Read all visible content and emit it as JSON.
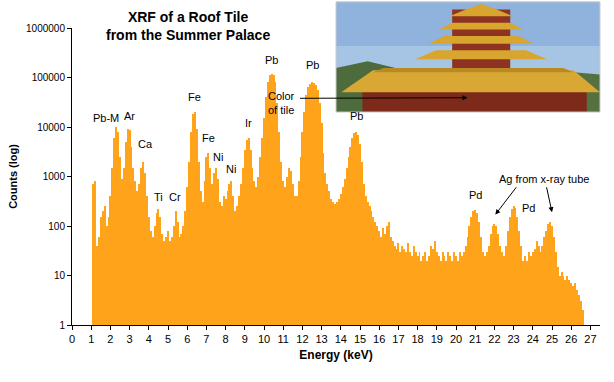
{
  "chart_data": {
    "type": "bar",
    "title": [
      "XRF of a Roof Tile",
      "from the Summer Palace"
    ],
    "x_label": "Energy (keV)",
    "y_label": "Counts (log)",
    "color": "#ffa31a",
    "log": "y",
    "grid": false,
    "xlim": [
      0,
      27.5
    ],
    "ylim": [
      1,
      1000000
    ],
    "xticks": [
      0,
      1,
      2,
      3,
      4,
      5,
      6,
      7,
      8,
      9,
      10,
      11,
      12,
      13,
      14,
      15,
      16,
      17,
      18,
      19,
      20,
      21,
      22,
      23,
      24,
      25,
      26,
      27
    ],
    "yticks": [
      1,
      10,
      100,
      1000,
      10000,
      100000,
      1000000
    ],
    "x": [
      1.1,
      1.2,
      1.3,
      1.4,
      1.5,
      1.6,
      1.7,
      1.8,
      1.9,
      2.0,
      2.1,
      2.2,
      2.3,
      2.4,
      2.5,
      2.6,
      2.7,
      2.8,
      2.9,
      3.0,
      3.1,
      3.2,
      3.3,
      3.4,
      3.5,
      3.6,
      3.7,
      3.8,
      3.9,
      4.0,
      4.1,
      4.2,
      4.3,
      4.4,
      4.5,
      4.6,
      4.7,
      4.8,
      4.9,
      5.0,
      5.1,
      5.2,
      5.3,
      5.4,
      5.5,
      5.6,
      5.7,
      5.8,
      5.9,
      6.0,
      6.1,
      6.2,
      6.3,
      6.4,
      6.5,
      6.6,
      6.7,
      6.8,
      6.9,
      7.0,
      7.1,
      7.2,
      7.3,
      7.4,
      7.5,
      7.6,
      7.7,
      7.8,
      7.9,
      8.0,
      8.1,
      8.2,
      8.3,
      8.4,
      8.5,
      8.6,
      8.7,
      8.8,
      8.9,
      9.0,
      9.1,
      9.2,
      9.3,
      9.4,
      9.5,
      9.6,
      9.7,
      9.8,
      9.9,
      10.0,
      10.1,
      10.2,
      10.3,
      10.4,
      10.5,
      10.6,
      10.7,
      10.8,
      10.9,
      11.0,
      11.1,
      11.2,
      11.3,
      11.4,
      11.5,
      11.6,
      11.7,
      11.8,
      11.9,
      12.0,
      12.1,
      12.2,
      12.3,
      12.4,
      12.5,
      12.6,
      12.7,
      12.8,
      12.9,
      13.0,
      13.1,
      13.2,
      13.3,
      13.4,
      13.5,
      13.6,
      13.7,
      13.8,
      13.9,
      14.0,
      14.1,
      14.2,
      14.3,
      14.4,
      14.5,
      14.6,
      14.7,
      14.8,
      14.9,
      15.0,
      15.1,
      15.2,
      15.3,
      15.4,
      15.5,
      15.6,
      15.7,
      15.8,
      15.9,
      16.0,
      16.1,
      16.2,
      16.3,
      16.4,
      16.5,
      16.6,
      16.7,
      16.8,
      16.9,
      17.0,
      17.1,
      17.2,
      17.3,
      17.4,
      17.5,
      17.6,
      17.7,
      17.8,
      17.9,
      18.0,
      18.1,
      18.2,
      18.3,
      18.4,
      18.5,
      18.6,
      18.7,
      18.8,
      18.9,
      19.0,
      19.1,
      19.2,
      19.3,
      19.4,
      19.5,
      19.6,
      19.7,
      19.8,
      19.9,
      20.0,
      20.1,
      20.2,
      20.3,
      20.4,
      20.5,
      20.6,
      20.7,
      20.8,
      20.9,
      21.0,
      21.1,
      21.2,
      21.3,
      21.4,
      21.5,
      21.6,
      21.7,
      21.8,
      21.9,
      22.0,
      22.1,
      22.2,
      22.3,
      22.4,
      22.5,
      22.6,
      22.7,
      22.8,
      22.9,
      23.0,
      23.1,
      23.2,
      23.3,
      23.4,
      23.5,
      23.6,
      23.7,
      23.8,
      23.9,
      24.0,
      24.1,
      24.2,
      24.3,
      24.4,
      24.5,
      24.6,
      24.7,
      24.8,
      24.9,
      25.0,
      25.1,
      25.2,
      25.3,
      25.4,
      25.5,
      25.6,
      25.7,
      25.8,
      25.9,
      26.0,
      26.1,
      26.2,
      26.3,
      26.4,
      26.5,
      26.6
    ],
    "values": [
      700,
      800,
      40,
      60,
      150,
      200,
      250,
      100,
      150,
      400,
      1500,
      6000,
      10000,
      8000,
      2500,
      900,
      1500,
      5000,
      9000,
      8500,
      4000,
      1500,
      800,
      500,
      700,
      1500,
      2000,
      1200,
      400,
      150,
      80,
      60,
      100,
      180,
      220,
      150,
      70,
      50,
      60,
      80,
      50,
      60,
      100,
      200,
      120,
      60,
      70,
      100,
      200,
      600,
      2000,
      8000,
      18000,
      20000,
      9000,
      2000,
      500,
      300,
      800,
      2500,
      3000,
      1500,
      700,
      1200,
      1500,
      900,
      300,
      250,
      400,
      350,
      500,
      700,
      800,
      400,
      200,
      250,
      400,
      700,
      1500,
      3500,
      5500,
      6000,
      3500,
      1500,
      800,
      600,
      1000,
      2500,
      6000,
      15000,
      40000,
      80000,
      110000,
      120000,
      115000,
      80000,
      30000,
      8000,
      2000,
      800,
      600,
      1000,
      1500,
      1300,
      700,
      400,
      400,
      800,
      2500,
      8000,
      20000,
      45000,
      65000,
      75000,
      80000,
      78000,
      70000,
      55000,
      30000,
      12000,
      3000,
      1200,
      700,
      500,
      350,
      300,
      280,
      300,
      350,
      450,
      600,
      900,
      1500,
      2500,
      4000,
      6000,
      7500,
      8000,
      7000,
      4500,
      2000,
      700,
      400,
      300,
      250,
      200,
      150,
      120,
      100,
      80,
      60,
      90,
      70,
      100,
      120,
      60,
      50,
      40,
      35,
      45,
      30,
      40,
      35,
      30,
      45,
      30,
      25,
      40,
      30,
      25,
      30,
      20,
      25,
      30,
      20,
      25,
      40,
      35,
      50,
      30,
      25,
      20,
      30,
      25,
      20,
      30,
      25,
      20,
      30,
      25,
      20,
      30,
      25,
      30,
      40,
      60,
      100,
      150,
      200,
      210,
      180,
      120,
      60,
      30,
      25,
      30,
      40,
      70,
      100,
      110,
      100,
      70,
      40,
      30,
      25,
      40,
      80,
      150,
      220,
      250,
      230,
      150,
      80,
      40,
      20,
      25,
      20,
      30,
      25,
      30,
      35,
      50,
      40,
      30,
      40,
      60,
      80,
      110,
      120,
      100,
      60,
      30,
      15,
      10,
      12,
      10,
      8,
      10,
      8,
      7,
      6,
      7,
      5,
      4,
      3,
      2
    ],
    "annotations": [
      {
        "text": "Pb-M",
        "x": 1.75,
        "y": 15000
      },
      {
        "text": "Ar",
        "x": 3.0,
        "y": 17000
      },
      {
        "text": "Ca",
        "x": 3.85,
        "y": 4500
      },
      {
        "text": "Ti",
        "x": 4.5,
        "y": 380
      },
      {
        "text": "Cr",
        "x": 5.35,
        "y": 380
      },
      {
        "text": "Fe",
        "x": 6.4,
        "y": 40000
      },
      {
        "text": "Fe",
        "x": 7.1,
        "y": 6000
      },
      {
        "text": "Ni",
        "x": 7.6,
        "y": 2500
      },
      {
        "text": "Ni",
        "x": 8.3,
        "y": 1400
      },
      {
        "text": "Ir",
        "x": 9.2,
        "y": 12000
      },
      {
        "text": "Pb",
        "x": 10.4,
        "y": 230000
      },
      {
        "text": "Pb",
        "x": 12.5,
        "y": 180000
      },
      {
        "text": "Pb",
        "x": 14.8,
        "y": 17000
      },
      {
        "text": [
          "Color",
          "of tile"
        ],
        "x": 10.9,
        "y": 30000,
        "arrows": [
          {
            "x0": 11.8,
            "y0": 38000,
            "x1": 20.6,
            "y1": 39000
          }
        ]
      },
      {
        "text": "Pd",
        "x": 21.0,
        "y": 420
      },
      {
        "text": "Ag from x-ray tube",
        "x": 24.6,
        "y": 900,
        "arrows": [
          {
            "x0": 23.2,
            "y0": 650,
            "x1": 22.05,
            "y1": 170
          },
          {
            "x0": 24.7,
            "y0": 650,
            "x1": 25.0,
            "y1": 190
          }
        ]
      },
      {
        "text": "Pd",
        "x": 23.8,
        "y": 230
      }
    ]
  }
}
